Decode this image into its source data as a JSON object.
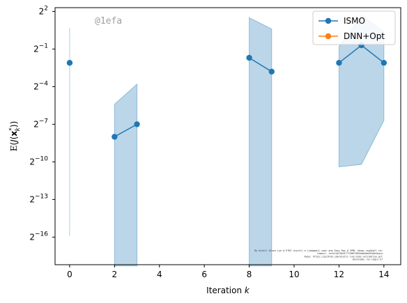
{
  "chart_data": {
    "type": "line",
    "xlabel": "Iteration k",
    "ylabel": "E(J(x_k^*))",
    "xlim": [
      -0.65,
      14.75
    ],
    "ylim_log2": [
      -18.2,
      2.3
    ],
    "y_scale": "log2",
    "x_ticks": [
      0,
      2,
      4,
      6,
      8,
      10,
      12,
      14
    ],
    "y_ticks_exp": [
      2,
      -1,
      -4,
      -7,
      -10,
      -13,
      -16
    ],
    "grid": false,
    "legend_position": "upper-right",
    "watermark": "@1efa",
    "footnote_lines": [
      "By Kjetil Olsen Lye @ ETHZ <kjetil.o.lye@gmail.com> and Easy Ray @ SPML <deep.ray@epfl.ch>",
      "Commit: 1e1ef4419b3f7713867909a6d6db0f8de5eaca",
      "Repo: https://github.com/kjetil-lye/isma_validation.git",
      "Hostname: ms-login-27"
    ],
    "series": [
      {
        "name": "ISMO",
        "color": "#1f77b4",
        "segments": [
          {
            "x": [
              0
            ],
            "y_exp": [
              -2.1
            ]
          },
          {
            "x": [
              2,
              3
            ],
            "y_exp": [
              -8.0,
              -7.0
            ]
          },
          {
            "x": [
              8,
              9
            ],
            "y_exp": [
              -1.7,
              -2.8
            ]
          },
          {
            "x": [
              12,
              13,
              14
            ],
            "y_exp": [
              -2.1,
              -0.7,
              -2.1
            ]
          }
        ],
        "bands": [
          {
            "x": [
              0,
              0
            ],
            "lower_exp": [
              -15.9,
              -15.9
            ],
            "upper_exp": [
              0.7,
              0.7
            ]
          },
          {
            "x": [
              2,
              3
            ],
            "lower_exp": [
              -18.3,
              -18.3
            ],
            "upper_exp": [
              -5.4,
              -3.8
            ]
          },
          {
            "x": [
              8,
              9
            ],
            "lower_exp": [
              -18.3,
              -18.3
            ],
            "upper_exp": [
              1.5,
              0.6
            ]
          },
          {
            "x": [
              12,
              13,
              14
            ],
            "lower_exp": [
              -10.4,
              -10.2,
              -6.7
            ],
            "upper_exp": [
              -0.8,
              1.7,
              0.4
            ]
          }
        ]
      },
      {
        "name": "DNN+Opt",
        "color": "#ff7f0e",
        "segments": [],
        "bands": []
      }
    ]
  }
}
